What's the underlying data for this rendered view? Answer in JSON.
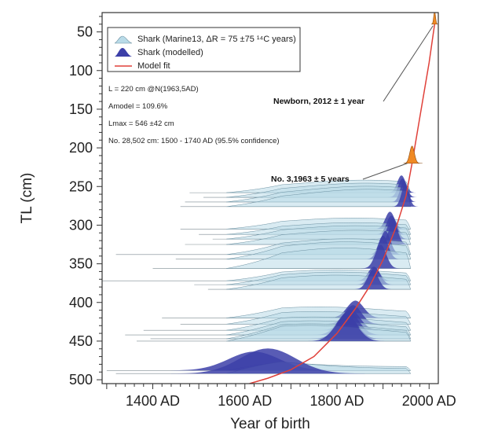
{
  "chart_data": {
    "type": "area",
    "xlabel": "Year of birth",
    "ylabel": "TL (cm)",
    "xlim": [
      1290,
      2020
    ],
    "ylim": [
      25,
      505
    ],
    "y_inverted": true,
    "x_ticks": [
      1400,
      1600,
      1800,
      2000
    ],
    "x_tick_labels": [
      "1400 AD",
      "1600 AD",
      "1800 AD",
      "2000 AD"
    ],
    "y_ticks": [
      50,
      100,
      150,
      200,
      250,
      300,
      350,
      400,
      450,
      500
    ],
    "y_tick_labels": [
      "50",
      "100",
      "150",
      "200",
      "250",
      "300",
      "350",
      "400",
      "450",
      "500"
    ],
    "legend_position": "top-left",
    "legend": [
      {
        "label": "Shark (Marine13, ΔR = 75 ±75 ¹⁴C years)",
        "kind": "calibrated",
        "color": "#b9dbe8"
      },
      {
        "label": "Shark (modelled)",
        "kind": "modelled",
        "color": "#3c3fa8"
      },
      {
        "label": "Model fit",
        "kind": "line",
        "color": "#e0413a"
      }
    ],
    "stats": [
      "L = 220 cm @N(1963,5AD)",
      "Amodel = 109.6%",
      "Lmax = 546 ±42 cm",
      "No. 28,502 cm: 1500 - 1740 AD (95.5% confidence)"
    ],
    "annotations": [
      {
        "text": "Newborn, 2012 ± 1 year",
        "x": 2012,
        "y": 40
      },
      {
        "text": "No. 3,1963 ± 5 years",
        "x": 1963,
        "y": 220
      }
    ],
    "series": [
      {
        "name": "Model fit",
        "type": "line",
        "color": "#e0413a",
        "x": [
          1610,
          1650,
          1700,
          1750,
          1800,
          1840,
          1870,
          1900,
          1930,
          1950,
          1963,
          1980,
          2000,
          2012
        ],
        "y": [
          505,
          498,
          487,
          470,
          440,
          408,
          380,
          345,
          300,
          262,
          220,
          160,
          90,
          40
        ]
      },
      {
        "name": "Newborn",
        "type": "distribution",
        "color": "#f08a24",
        "y": 40,
        "center": 2012,
        "sd": 2,
        "height": 16,
        "range": [
          2005,
          2018
        ]
      },
      {
        "name": "No. 3",
        "type": "distribution",
        "color": "#f08a24",
        "y": 220,
        "center": 1963,
        "sd": 5,
        "height": 22,
        "range": [
          1945,
          1985
        ]
      }
    ],
    "sharks": [
      {
        "y": 258,
        "start": 1480,
        "mod": 1940,
        "msd": 9,
        "mh": 22,
        "ch": 16
      },
      {
        "y": 264,
        "start": 1510,
        "mod": 1942,
        "msd": 9,
        "mh": 24,
        "ch": 18
      },
      {
        "y": 270,
        "start": 1470,
        "mod": 1945,
        "msd": 8,
        "mh": 26,
        "ch": 20
      },
      {
        "y": 276,
        "start": 1460,
        "mod": 1948,
        "msd": 8,
        "mh": 28,
        "ch": 22
      },
      {
        "y": 305,
        "start": 1460,
        "mod": 1915,
        "msd": 10,
        "mh": 22,
        "ch": 14
      },
      {
        "y": 312,
        "start": 1500,
        "mod": 1918,
        "msd": 10,
        "mh": 24,
        "ch": 15
      },
      {
        "y": 318,
        "start": 1530,
        "mod": 1920,
        "msd": 10,
        "mh": 26,
        "ch": 17
      },
      {
        "y": 325,
        "start": 1470,
        "mod": 1922,
        "msd": 10,
        "mh": 28,
        "ch": 18
      },
      {
        "y": 338,
        "start": 1320,
        "mod": 1905,
        "msd": 11,
        "mh": 30,
        "ch": 20
      },
      {
        "y": 344,
        "start": 1450,
        "mod": 1900,
        "msd": 11,
        "mh": 30,
        "ch": 22
      },
      {
        "y": 356,
        "start": 1400,
        "mod": 1895,
        "msd": 12,
        "mh": 30,
        "ch": 26
      },
      {
        "y": 372,
        "start": 1280,
        "mod": 1880,
        "msd": 12,
        "mh": 18,
        "ch": 14
      },
      {
        "y": 377,
        "start": 1490,
        "mod": 1882,
        "msd": 12,
        "mh": 22,
        "ch": 16
      },
      {
        "y": 383,
        "start": 1520,
        "mod": 1878,
        "msd": 12,
        "mh": 24,
        "ch": 18
      },
      {
        "y": 420,
        "start": 1420,
        "mod": 1840,
        "msd": 18,
        "mh": 22,
        "ch": 14
      },
      {
        "y": 428,
        "start": 1460,
        "mod": 1835,
        "msd": 18,
        "mh": 24,
        "ch": 16
      },
      {
        "y": 436,
        "start": 1380,
        "mod": 1830,
        "msd": 20,
        "mh": 26,
        "ch": 17
      },
      {
        "y": 442,
        "start": 1340,
        "mod": 1825,
        "msd": 22,
        "mh": 30,
        "ch": 18
      },
      {
        "y": 447,
        "start": 1395,
        "mod": 1822,
        "msd": 22,
        "mh": 30,
        "ch": 19
      },
      {
        "y": 450,
        "start": 1365,
        "mod": 1820,
        "msd": 24,
        "mh": 32,
        "ch": 20
      },
      {
        "y": 488,
        "start": 1300,
        "mod": 1620,
        "msd": 55,
        "mh": 24,
        "ch": 14
      },
      {
        "y": 492,
        "start": 1320,
        "mod": 1650,
        "msd": 60,
        "mh": 32,
        "ch": 18
      }
    ]
  }
}
